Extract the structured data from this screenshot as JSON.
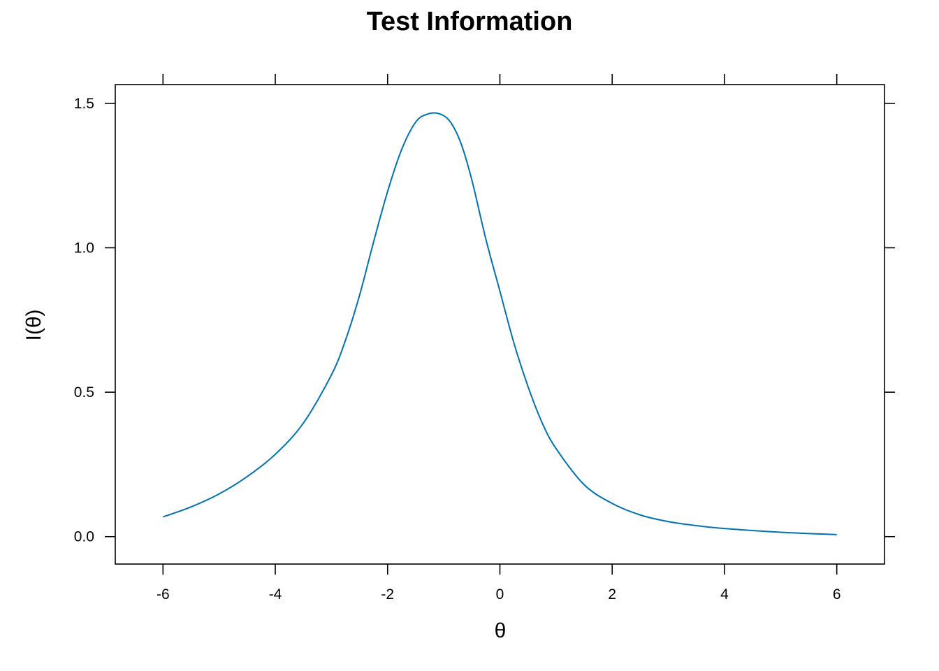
{
  "chart_data": {
    "type": "line",
    "title": "Test Information",
    "xlabel": "θ",
    "ylabel": "I(θ)",
    "xlim": [
      -6.85,
      6.85
    ],
    "ylim": [
      -0.095,
      1.565
    ],
    "x_ticks": [
      -6,
      -4,
      -2,
      0,
      2,
      4,
      6
    ],
    "x_tick_labels": [
      "-6",
      "-4",
      "-2",
      "0",
      "2",
      "4",
      "6"
    ],
    "y_ticks": [
      0.0,
      0.5,
      1.0,
      1.5
    ],
    "y_tick_labels": [
      "0.0",
      "0.5",
      "1.0",
      "1.5"
    ],
    "grid": false,
    "legend": "none",
    "series": [
      {
        "color": "#0072B2",
        "x": [
          -6.0,
          -5.5,
          -5.0,
          -4.5,
          -4.0,
          -3.5,
          -3.0,
          -2.75,
          -2.5,
          -2.25,
          -2.0,
          -1.75,
          -1.5,
          -1.3,
          -1.1,
          -0.9,
          -0.7,
          -0.5,
          -0.25,
          0.0,
          0.25,
          0.5,
          0.75,
          1.0,
          1.5,
          2.0,
          2.5,
          3.0,
          3.5,
          4.0,
          5.0,
          6.0
        ],
        "y": [
          0.068,
          0.103,
          0.148,
          0.208,
          0.285,
          0.393,
          0.56,
          0.68,
          0.835,
          1.02,
          1.195,
          1.34,
          1.435,
          1.462,
          1.465,
          1.44,
          1.365,
          1.235,
          1.03,
          0.85,
          0.67,
          0.52,
          0.395,
          0.305,
          0.18,
          0.115,
          0.075,
          0.052,
          0.038,
          0.028,
          0.015,
          0.007
        ]
      }
    ]
  }
}
